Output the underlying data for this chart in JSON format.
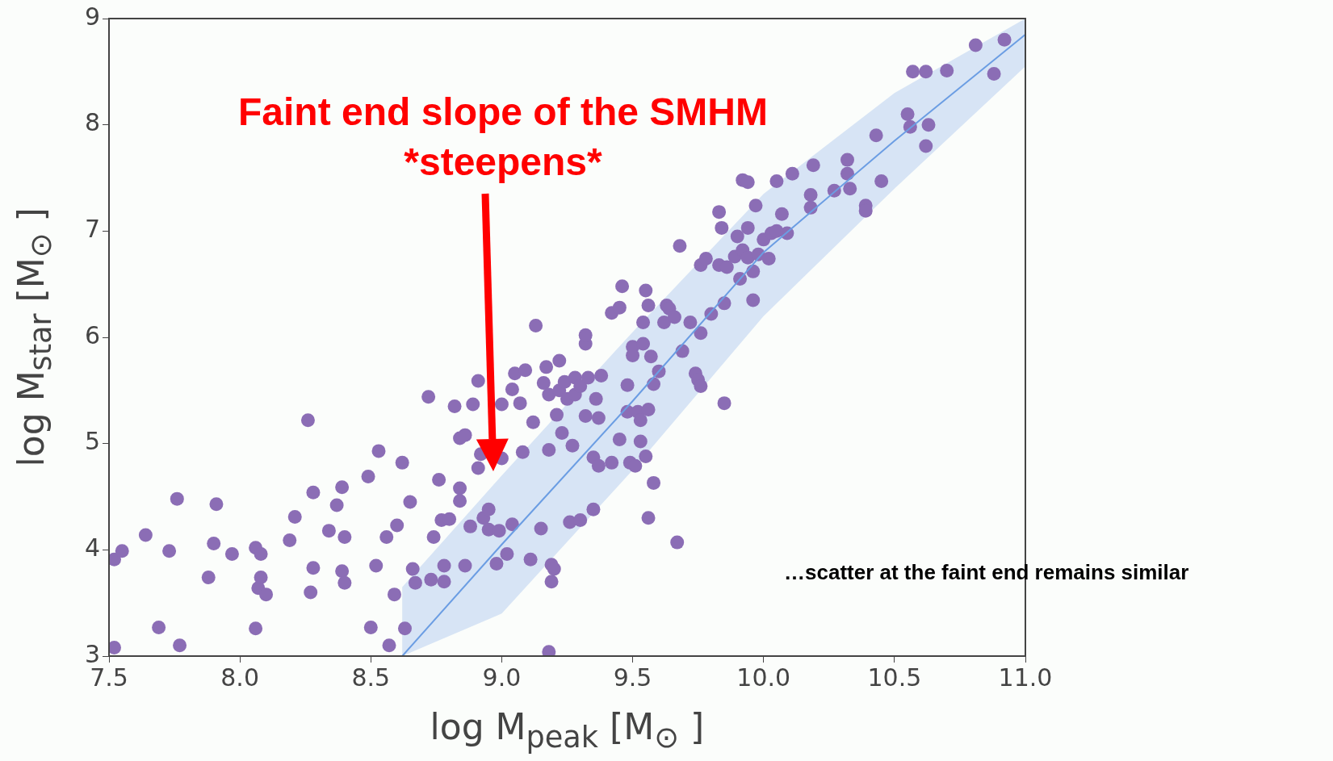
{
  "chart_data": {
    "type": "scatter",
    "xlabel": "log M$_{peak}$ [M$_{⊙}$ ]",
    "ylabel": "log M$_{star}$ [M$_{⊙}$ ]",
    "xlim": [
      7.5,
      11.0
    ],
    "ylim": [
      3,
      9
    ],
    "xticks": [
      7.5,
      {
        "value": 8,
        "label": "8.0"
      },
      8.5,
      {
        "value": 9,
        "label": "9.0"
      },
      9.5,
      {
        "value": 10,
        "label": "10.0"
      },
      10.5,
      {
        "value": 11,
        "label": "11.0"
      }
    ],
    "yticks": [
      3,
      4,
      5,
      6,
      7,
      8,
      9
    ],
    "grid": false,
    "legend": false,
    "annotations": [
      "Faint end slope of the SMHM *steepens*",
      "…scatter at the faint end remains similar"
    ],
    "series": [
      {
        "marker": "circle",
        "color": "#8b6db5",
        "x": [
          7.52,
          7.52,
          7.55,
          7.64,
          7.69,
          7.73,
          7.76,
          7.77,
          7.88,
          7.9,
          7.91,
          7.97,
          8.06,
          8.06,
          8.07,
          8.08,
          8.08,
          8.1,
          8.19,
          8.21,
          8.26,
          8.27,
          8.28,
          8.28,
          8.34,
          8.37,
          8.39,
          8.39,
          8.4,
          8.4,
          8.5,
          8.49,
          8.52,
          8.53,
          8.56,
          8.57,
          8.59,
          8.6,
          8.62,
          8.63,
          8.65,
          8.66,
          8.67,
          8.72,
          8.73,
          8.74,
          8.76,
          8.77,
          8.78,
          8.78,
          8.8,
          8.82,
          8.84,
          8.84,
          8.84,
          8.86,
          8.86,
          8.89,
          8.88,
          8.91,
          8.91,
          8.92,
          8.93,
          8.95,
          8.95,
          8.98,
          8.99,
          9.0,
          9.0,
          9.02,
          9.04,
          9.04,
          9.05,
          9.07,
          9.08,
          9.09,
          9.11,
          9.12,
          9.13,
          9.15,
          9.16,
          9.17,
          9.18,
          9.18,
          9.18,
          9.19,
          9.19,
          9.2,
          9.21,
          9.22,
          9.22,
          9.23,
          9.24,
          9.25,
          9.26,
          9.27,
          9.28,
          9.28,
          9.3,
          9.3,
          9.32,
          9.32,
          9.32,
          9.33,
          9.35,
          9.35,
          9.36,
          9.37,
          9.37,
          9.38,
          9.42,
          9.42,
          9.45,
          9.45,
          9.46,
          9.48,
          9.48,
          9.49,
          9.5,
          9.5,
          9.51,
          9.52,
          9.53,
          9.53,
          9.54,
          9.54,
          9.55,
          9.55,
          9.56,
          9.56,
          9.56,
          9.57,
          9.58,
          9.58,
          9.6,
          9.62,
          9.63,
          9.64,
          9.67,
          9.66,
          9.68,
          9.69,
          9.72,
          9.74,
          9.75,
          9.76,
          9.76,
          9.76,
          9.78,
          9.8,
          9.83,
          9.84,
          9.83,
          9.85,
          9.85,
          9.86,
          9.89,
          9.9,
          9.91,
          9.92,
          9.92,
          9.94,
          9.94,
          9.94,
          9.96,
          9.97,
          9.96,
          9.98,
          10.0,
          10.02,
          10.03,
          10.05,
          10.05,
          10.07,
          10.09,
          10.11,
          10.18,
          10.18,
          10.19,
          10.27,
          10.32,
          10.32,
          10.33,
          10.39,
          10.39,
          10.43,
          10.45,
          10.55,
          10.56,
          10.57,
          10.62,
          10.62,
          10.63,
          10.7,
          10.81,
          10.88,
          10.92
        ],
        "values": [
          3.08,
          3.91,
          3.99,
          4.14,
          3.27,
          3.99,
          4.48,
          3.1,
          3.74,
          4.06,
          4.43,
          3.96,
          3.26,
          4.02,
          3.64,
          3.74,
          3.96,
          3.58,
          4.09,
          4.31,
          5.22,
          3.6,
          3.83,
          4.54,
          4.18,
          4.42,
          4.59,
          3.8,
          3.69,
          4.12,
          3.27,
          4.69,
          3.85,
          4.93,
          4.12,
          3.1,
          3.58,
          4.23,
          4.82,
          3.26,
          4.45,
          3.82,
          3.69,
          5.44,
          3.72,
          4.12,
          4.66,
          4.28,
          3.7,
          3.85,
          4.29,
          5.35,
          4.58,
          4.46,
          5.05,
          5.08,
          3.85,
          5.37,
          4.22,
          5.59,
          4.77,
          4.9,
          4.3,
          4.38,
          4.19,
          3.87,
          4.18,
          5.37,
          4.86,
          3.96,
          4.24,
          5.51,
          5.66,
          5.38,
          4.92,
          5.69,
          3.91,
          5.2,
          6.11,
          4.2,
          5.57,
          5.72,
          5.46,
          3.04,
          4.94,
          3.86,
          3.7,
          3.82,
          5.27,
          5.78,
          5.5,
          5.1,
          5.58,
          5.42,
          4.26,
          4.98,
          5.62,
          5.46,
          4.28,
          5.54,
          5.94,
          6.02,
          5.26,
          5.62,
          4.87,
          4.38,
          5.42,
          4.79,
          5.24,
          5.64,
          4.82,
          6.23,
          6.28,
          5.04,
          6.48,
          5.3,
          5.55,
          4.82,
          5.91,
          5.83,
          4.79,
          5.3,
          5.02,
          5.22,
          5.94,
          6.14,
          6.44,
          4.88,
          4.3,
          5.32,
          6.3,
          5.82,
          5.56,
          4.63,
          5.68,
          6.14,
          6.3,
          6.27,
          4.07,
          6.19,
          6.86,
          5.87,
          6.14,
          5.66,
          5.6,
          5.54,
          6.04,
          6.68,
          6.74,
          6.22,
          7.18,
          7.03,
          6.68,
          5.38,
          6.32,
          6.66,
          6.76,
          6.95,
          6.55,
          7.48,
          6.82,
          7.03,
          7.46,
          6.75,
          6.62,
          7.24,
          6.35,
          6.78,
          6.92,
          6.74,
          6.98,
          7.0,
          7.47,
          7.16,
          6.98,
          7.54,
          7.22,
          7.34,
          7.62,
          7.38,
          7.54,
          7.67,
          7.4,
          7.24,
          7.19,
          7.9,
          7.47,
          8.1,
          7.98,
          8.5,
          8.5,
          7.8,
          8.0,
          8.51,
          8.75,
          8.48,
          8.8
        ]
      },
      {
        "type": "line",
        "marker": "none",
        "color": "#6b9de3",
        "x": [
          8.62,
          9.0,
          9.5,
          10.0,
          10.5,
          11.0
        ],
        "values": [
          3.0,
          4.05,
          5.4,
          6.8,
          7.85,
          8.85
        ],
        "lower": [
          3.0,
          3.4,
          4.75,
          6.2,
          7.4,
          8.55
        ],
        "upper": [
          3.65,
          4.7,
          6.05,
          7.35,
          8.3,
          9.0
        ]
      }
    ]
  }
}
